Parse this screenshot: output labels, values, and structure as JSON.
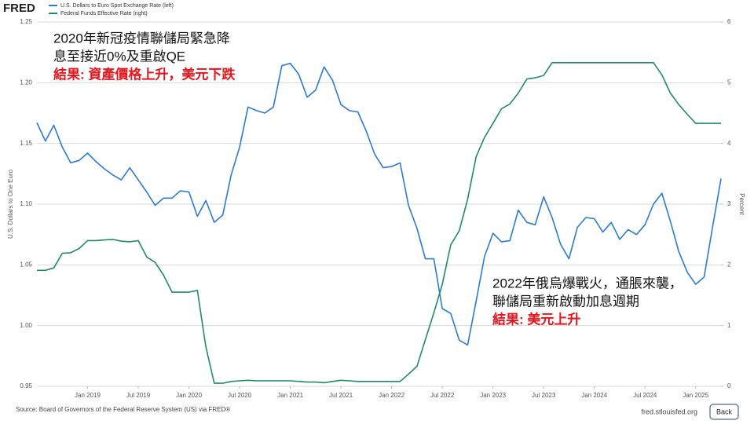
{
  "chart_data": {
    "type": "line",
    "logo": "FRED",
    "x": [
      "2018-07",
      "2018-08",
      "2018-09",
      "2018-10",
      "2018-11",
      "2018-12",
      "2019-01",
      "2019-02",
      "2019-03",
      "2019-04",
      "2019-05",
      "2019-06",
      "2019-07",
      "2019-08",
      "2019-09",
      "2019-10",
      "2019-11",
      "2019-12",
      "2020-01",
      "2020-02",
      "2020-03",
      "2020-04",
      "2020-05",
      "2020-06",
      "2020-07",
      "2020-08",
      "2020-09",
      "2020-10",
      "2020-11",
      "2020-12",
      "2021-01",
      "2021-02",
      "2021-03",
      "2021-04",
      "2021-05",
      "2021-06",
      "2021-07",
      "2021-08",
      "2021-09",
      "2021-10",
      "2021-11",
      "2021-12",
      "2022-01",
      "2022-02",
      "2022-03",
      "2022-04",
      "2022-05",
      "2022-06",
      "2022-07",
      "2022-08",
      "2022-09",
      "2022-10",
      "2022-11",
      "2022-12",
      "2023-01",
      "2023-02",
      "2023-03",
      "2023-04",
      "2023-05",
      "2023-06",
      "2023-07",
      "2023-08",
      "2023-09",
      "2023-10",
      "2023-11",
      "2023-12",
      "2024-01",
      "2024-02",
      "2024-03",
      "2024-04",
      "2024-05",
      "2024-06",
      "2024-07",
      "2024-08",
      "2024-09",
      "2024-10",
      "2024-11",
      "2024-12",
      "2025-01",
      "2025-02",
      "2025-03",
      "2025-04"
    ],
    "xlim": [
      "2018-07",
      "2025-04"
    ],
    "xticks": [
      {
        "value": "2019-01",
        "label": "Jan 2019"
      },
      {
        "value": "2019-07",
        "label": "Jul 2019"
      },
      {
        "value": "2020-01",
        "label": "Jan 2020"
      },
      {
        "value": "2020-07",
        "label": "Jul 2020"
      },
      {
        "value": "2021-01",
        "label": "Jan 2021"
      },
      {
        "value": "2021-07",
        "label": "Jul 2021"
      },
      {
        "value": "2022-01",
        "label": "Jan 2022"
      },
      {
        "value": "2022-07",
        "label": "Jul 2022"
      },
      {
        "value": "2023-01",
        "label": "Jan 2023"
      },
      {
        "value": "2023-07",
        "label": "Jul 2023"
      },
      {
        "value": "2024-01",
        "label": "Jan 2024"
      },
      {
        "value": "2024-07",
        "label": "Jul 2024"
      },
      {
        "value": "2025-01",
        "label": "Jan 2025"
      }
    ],
    "ylabel": "U.S. Dollars to One Euro",
    "ylim": [
      0.95,
      1.25
    ],
    "yticks": [
      0.95,
      {
        "value": 1.0,
        "label": "1.00"
      },
      1.05,
      {
        "value": 1.1,
        "label": "1.10"
      },
      1.15,
      {
        "value": 1.2,
        "label": "1.20"
      },
      1.25
    ],
    "y2label": "Percent",
    "y2lim": [
      0,
      6
    ],
    "y2ticks": [
      0,
      1,
      2,
      3,
      4,
      5,
      6
    ],
    "grid": true,
    "series": [
      {
        "name": "U.S. Dollars to Euro Spot Exchange Rate (left)",
        "color": "#2a7ad6",
        "values": [
          1.167,
          1.152,
          1.165,
          1.147,
          1.134,
          1.136,
          1.142,
          1.135,
          1.129,
          1.124,
          1.12,
          1.13,
          1.12,
          1.11,
          1.099,
          1.105,
          1.105,
          1.111,
          1.11,
          1.09,
          1.103,
          1.085,
          1.091,
          1.124,
          1.147,
          1.18,
          1.177,
          1.175,
          1.18,
          1.214,
          1.216,
          1.207,
          1.188,
          1.194,
          1.213,
          1.202,
          1.182,
          1.177,
          1.176,
          1.16,
          1.141,
          1.13,
          1.131,
          1.134,
          1.099,
          1.08,
          1.055,
          1.055,
          1.014,
          1.01,
          0.988,
          0.984,
          1.02,
          1.057,
          1.076,
          1.069,
          1.07,
          1.095,
          1.085,
          1.083,
          1.106,
          1.089,
          1.067,
          1.055,
          1.081,
          1.089,
          1.088,
          1.077,
          1.085,
          1.071,
          1.079,
          1.075,
          1.083,
          1.1,
          1.109,
          1.086,
          1.061,
          1.044,
          1.034,
          1.04,
          1.081,
          1.121
        ]
      },
      {
        "name": "Federal Funds Effective Rate (right)",
        "color": "#228a6b",
        "axis": "y2",
        "values": [
          1.91,
          1.91,
          1.95,
          2.19,
          2.2,
          2.27,
          2.4,
          2.4,
          2.41,
          2.42,
          2.39,
          2.38,
          2.4,
          2.13,
          2.04,
          1.83,
          1.55,
          1.55,
          1.55,
          1.58,
          0.65,
          0.05,
          0.05,
          0.08,
          0.09,
          0.1,
          0.09,
          0.09,
          0.09,
          0.09,
          0.09,
          0.08,
          0.07,
          0.07,
          0.06,
          0.08,
          0.1,
          0.09,
          0.08,
          0.08,
          0.08,
          0.08,
          0.08,
          0.08,
          0.2,
          0.33,
          0.77,
          1.21,
          1.68,
          2.33,
          2.56,
          3.08,
          3.78,
          4.1,
          4.33,
          4.57,
          4.65,
          4.83,
          5.06,
          5.08,
          5.12,
          5.33,
          5.33,
          5.33,
          5.33,
          5.33,
          5.33,
          5.33,
          5.33,
          5.33,
          5.33,
          5.33,
          5.33,
          5.33,
          5.13,
          4.83,
          4.64,
          4.48,
          4.33,
          4.33,
          4.33,
          4.33
        ]
      }
    ],
    "annotations": [
      {
        "lines": [
          {
            "text": "2020年新冠疫情聯儲局緊急降",
            "color": "#111111"
          },
          {
            "text": "息至接近0%及重啟QE",
            "color": "#111111"
          },
          {
            "text": "結果: 資產價格上升，美元下跌",
            "color": "#e8141b"
          }
        ]
      },
      {
        "lines": [
          {
            "text": "2022年俄烏爆戰火，通脹來襲，",
            "color": "#111111"
          },
          {
            "text": "聯儲局重新啟動加息週期",
            "color": "#111111"
          },
          {
            "text": "結果: 美元上升",
            "color": "#e8141b"
          }
        ]
      }
    ],
    "source": "Source: Board of Governors of the Federal Reserve System (US) via FRED®",
    "site": "fred.stlouisfed.org",
    "button": "Back"
  }
}
